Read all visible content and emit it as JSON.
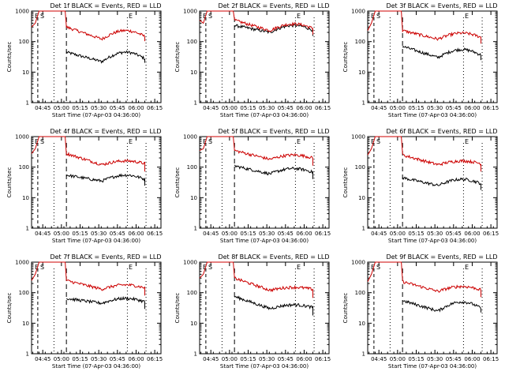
{
  "figure": {
    "background": "#ffffff",
    "colors": {
      "events": "#000000",
      "lld": "#cc0000",
      "axes": "#000000"
    }
  },
  "chart_data": [
    {
      "type": "line",
      "title": "Det 1f BLACK = Events, RED = LLD",
      "xlabel": "Start Time (07-Apr-03 04:36:00)",
      "ylabel": "Counts/sec",
      "yscale": "log",
      "ylim": [
        1,
        1000
      ],
      "x_ticks": [
        "04:45",
        "05:00",
        "05:15",
        "05:30",
        "05:45",
        "06:00",
        "06:15"
      ],
      "y_ticks": [
        "1",
        "10",
        "100",
        "1000"
      ],
      "markers": [
        "E",
        "S",
        "E"
      ],
      "series": [
        {
          "name": "BLACK = Events",
          "color": "#000000",
          "start": 45,
          "peak": 45,
          "mid": 22,
          "end": 45
        },
        {
          "name": "RED = LLD",
          "color": "#cc0000",
          "start": 300,
          "peak": 1000,
          "mid": 120,
          "end": 230
        }
      ]
    },
    {
      "type": "line",
      "title": "Det 2f BLACK = Events, RED = LLD",
      "xlabel": "Start Time (07-Apr-03 04:36:00)",
      "ylabel": "Counts/sec",
      "yscale": "log",
      "ylim": [
        1,
        1000
      ],
      "x_ticks": [
        "04:45",
        "05:00",
        "05:15",
        "05:30",
        "05:45",
        "06:00",
        "06:15"
      ],
      "y_ticks": [
        "1",
        "10",
        "100",
        "1000"
      ],
      "markers": [
        "E",
        "S",
        "E"
      ],
      "series": [
        {
          "name": "BLACK = Events",
          "color": "#000000",
          "start": 340,
          "peak": 340,
          "mid": 200,
          "end": 340
        },
        {
          "name": "RED = LLD",
          "color": "#cc0000",
          "start": 500,
          "peak": 1000,
          "mid": 230,
          "end": 380
        }
      ]
    },
    {
      "type": "line",
      "title": "Det 3f BLACK = Events, RED = LLD",
      "xlabel": "Start Time (07-Apr-03 04:36:00)",
      "ylabel": "Counts/sec",
      "yscale": "log",
      "ylim": [
        1,
        1000
      ],
      "x_ticks": [
        "04:45",
        "05:00",
        "05:15",
        "05:30",
        "05:45",
        "06:00",
        "06:15"
      ],
      "y_ticks": [
        "1",
        "10",
        "100",
        "1000"
      ],
      "markers": [
        "E",
        "S",
        "E"
      ],
      "series": [
        {
          "name": "BLACK = Events",
          "color": "#000000",
          "start": 70,
          "peak": 70,
          "mid": 30,
          "end": 55
        },
        {
          "name": "RED = LLD",
          "color": "#cc0000",
          "start": 230,
          "peak": 1000,
          "mid": 120,
          "end": 190
        }
      ]
    },
    {
      "type": "line",
      "title": "Det 4f BLACK = Events, RED = LLD",
      "xlabel": "Start Time (07-Apr-03 04:36:00)",
      "ylabel": "Counts/sec",
      "yscale": "log",
      "ylim": [
        1,
        1000
      ],
      "x_ticks": [
        "04:45",
        "05:00",
        "05:15",
        "05:30",
        "05:45",
        "06:00",
        "06:15"
      ],
      "y_ticks": [
        "1",
        "10",
        "100",
        "1000"
      ],
      "markers": [
        "E",
        "S",
        "E"
      ],
      "series": [
        {
          "name": "BLACK = Events",
          "color": "#000000",
          "start": 55,
          "peak": 55,
          "mid": 35,
          "end": 55
        },
        {
          "name": "RED = LLD",
          "color": "#cc0000",
          "start": 280,
          "peak": 1000,
          "mid": 120,
          "end": 160
        }
      ]
    },
    {
      "type": "line",
      "title": "Det 5f BLACK = Events, RED = LLD",
      "xlabel": "Start Time (07-Apr-03 04:36:00)",
      "ylabel": "Counts/sec",
      "yscale": "log",
      "ylim": [
        1,
        1000
      ],
      "x_ticks": [
        "04:45",
        "05:00",
        "05:15",
        "05:30",
        "05:45",
        "06:00",
        "06:15"
      ],
      "y_ticks": [
        "1",
        "10",
        "100",
        "1000"
      ],
      "markers": [
        "E",
        "S",
        "E"
      ],
      "series": [
        {
          "name": "BLACK = Events",
          "color": "#000000",
          "start": 110,
          "peak": 110,
          "mid": 60,
          "end": 90
        },
        {
          "name": "RED = LLD",
          "color": "#cc0000",
          "start": 350,
          "peak": 1000,
          "mid": 180,
          "end": 250
        }
      ]
    },
    {
      "type": "line",
      "title": "Det 6f BLACK = Events, RED = LLD",
      "xlabel": "Start Time (07-Apr-03 04:36:00)",
      "ylabel": "Counts/sec",
      "yscale": "log",
      "ylim": [
        1,
        1000
      ],
      "x_ticks": [
        "04:45",
        "05:00",
        "05:15",
        "05:30",
        "05:45",
        "06:00",
        "06:15"
      ],
      "y_ticks": [
        "1",
        "10",
        "100",
        "1000"
      ],
      "markers": [
        "E",
        "S",
        "E"
      ],
      "series": [
        {
          "name": "BLACK = Events",
          "color": "#000000",
          "start": 45,
          "peak": 45,
          "mid": 25,
          "end": 40
        },
        {
          "name": "RED = LLD",
          "color": "#cc0000",
          "start": 250,
          "peak": 1000,
          "mid": 120,
          "end": 160
        }
      ]
    },
    {
      "type": "line",
      "title": "Det 7f BLACK = Events, RED = LLD",
      "xlabel": "Start Time (07-Apr-03 04:36:00)",
      "ylabel": "Counts/sec",
      "yscale": "log",
      "ylim": [
        1,
        1000
      ],
      "x_ticks": [
        "04:45",
        "05:00",
        "05:15",
        "05:30",
        "05:45",
        "06:00",
        "06:15"
      ],
      "y_ticks": [
        "1",
        "10",
        "100",
        "1000"
      ],
      "markers": [
        "E",
        "S",
        "E"
      ],
      "series": [
        {
          "name": "BLACK = Events",
          "color": "#000000",
          "start": 65,
          "peak": 65,
          "mid": 45,
          "end": 65
        },
        {
          "name": "RED = LLD",
          "color": "#cc0000",
          "start": 250,
          "peak": 1000,
          "mid": 130,
          "end": 180
        }
      ]
    },
    {
      "type": "line",
      "title": "Det 8f BLACK = Events, RED = LLD",
      "xlabel": "Start Time (07-Apr-03 04:36:00)",
      "ylabel": "Counts/sec",
      "yscale": "log",
      "ylim": [
        1,
        1000
      ],
      "x_ticks": [
        "04:45",
        "05:00",
        "05:15",
        "05:30",
        "05:45",
        "06:00",
        "06:15"
      ],
      "y_ticks": [
        "1",
        "10",
        "100",
        "1000"
      ],
      "markers": [
        "E",
        "S",
        "E"
      ],
      "series": [
        {
          "name": "BLACK = Events",
          "color": "#000000",
          "start": 75,
          "peak": 75,
          "mid": 30,
          "end": 40
        },
        {
          "name": "RED = LLD",
          "color": "#cc0000",
          "start": 300,
          "peak": 1000,
          "mid": 120,
          "end": 150
        }
      ]
    },
    {
      "type": "line",
      "title": "Det 9f BLACK = Events, RED = LLD",
      "xlabel": "Start Time (07-Apr-03 04:36:00)",
      "ylabel": "Counts/sec",
      "yscale": "log",
      "ylim": [
        1,
        1000
      ],
      "x_ticks": [
        "04:45",
        "05:00",
        "05:15",
        "05:30",
        "05:45",
        "06:00",
        "06:15"
      ],
      "y_ticks": [
        "1",
        "10",
        "100",
        "1000"
      ],
      "markers": [
        "E",
        "S",
        "E"
      ],
      "series": [
        {
          "name": "BLACK = Events",
          "color": "#000000",
          "start": 55,
          "peak": 55,
          "mid": 25,
          "end": 50
        },
        {
          "name": "RED = LLD",
          "color": "#cc0000",
          "start": 230,
          "peak": 1000,
          "mid": 110,
          "end": 160
        }
      ]
    }
  ]
}
